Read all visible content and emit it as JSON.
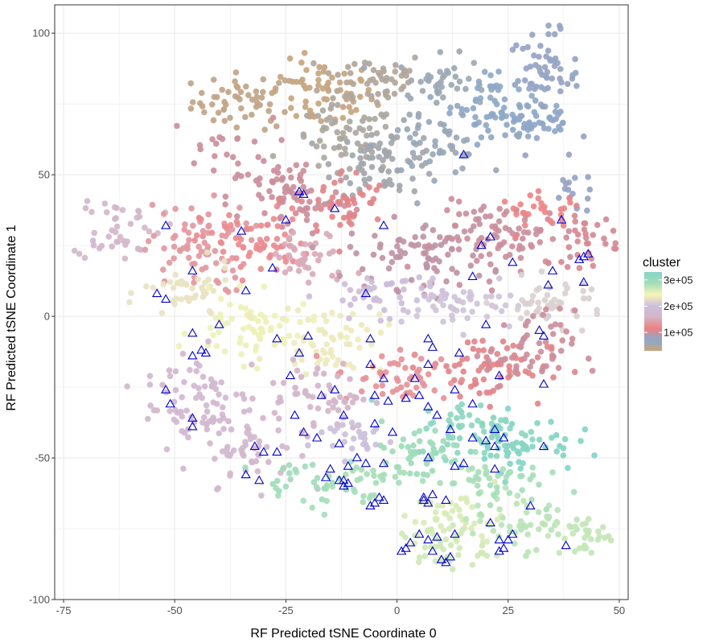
{
  "chart_data": {
    "type": "scatter",
    "title": "",
    "xlabel": "RF Predicted tSNE Coordinate 0",
    "ylabel": "RF Predicted tSNE Coordinate 1",
    "xlim": [
      -77,
      52
    ],
    "ylim": [
      -100,
      110
    ],
    "x_ticks": [
      -75,
      -50,
      -25,
      0,
      25,
      50
    ],
    "y_ticks": [
      -100,
      -50,
      0,
      50,
      100
    ],
    "x_tick_labels": [
      "-75",
      "-50",
      "-25",
      "0",
      "25",
      "50"
    ],
    "y_tick_labels": [
      "-100",
      "-50",
      "0",
      "50",
      "100"
    ],
    "grid": true,
    "background": "#ffffff",
    "grid_color": "#ebebeb",
    "legend": {
      "title": "cluster",
      "placement": "right",
      "min": 30000,
      "max": 330000,
      "break_values": [
        100000,
        200000,
        300000
      ],
      "break_labels": [
        "1e+05",
        "2e+05",
        "3e+05"
      ],
      "palette": [
        "#c7a57f",
        "#8aa9cc",
        "#f08080",
        "#d4b5c8",
        "#ccc0dc",
        "#f8f4b6",
        "#a3ddb9",
        "#86d5c4"
      ]
    },
    "regions": [
      {
        "x": -34,
        "y": 76,
        "sx": 6,
        "sy": 5,
        "n": 55,
        "value": 35000
      },
      {
        "x": -17,
        "y": 78,
        "sx": 6,
        "sy": 6,
        "n": 60,
        "value": 30000
      },
      {
        "x": -5,
        "y": 84,
        "sx": 6,
        "sy": 5,
        "n": 50,
        "value": 45000
      },
      {
        "x": 10,
        "y": 82,
        "sx": 5,
        "sy": 5,
        "n": 45,
        "value": 60000
      },
      {
        "x": 22,
        "y": 76,
        "sx": 5,
        "sy": 6,
        "n": 50,
        "value": 70000
      },
      {
        "x": 33,
        "y": 84,
        "sx": 4,
        "sy": 8,
        "n": 65,
        "value": 78000
      },
      {
        "x": 30,
        "y": 68,
        "sx": 6,
        "sy": 4,
        "n": 40,
        "value": 75000
      },
      {
        "x": 40,
        "y": 44,
        "sx": 3,
        "sy": 4,
        "n": 15,
        "value": 78000
      },
      {
        "x": -12,
        "y": 62,
        "sx": 6,
        "sy": 6,
        "n": 60,
        "value": 48000
      },
      {
        "x": -2,
        "y": 55,
        "sx": 6,
        "sy": 6,
        "n": 70,
        "value": 55000
      },
      {
        "x": 8,
        "y": 60,
        "sx": 6,
        "sy": 5,
        "n": 45,
        "value": 62000
      },
      {
        "x": -40,
        "y": 60,
        "sx": 6,
        "sy": 5,
        "n": 20,
        "value": 100000
      },
      {
        "x": -24,
        "y": 42,
        "sx": 7,
        "sy": 7,
        "n": 75,
        "value": 100000
      },
      {
        "x": -12,
        "y": 40,
        "sx": 5,
        "sy": 6,
        "n": 45,
        "value": 110000
      },
      {
        "x": -63,
        "y": 32,
        "sx": 5,
        "sy": 6,
        "n": 45,
        "value": 165000
      },
      {
        "x": -45,
        "y": 24,
        "sx": 6,
        "sy": 8,
        "n": 75,
        "value": 135000
      },
      {
        "x": -32,
        "y": 26,
        "sx": 6,
        "sy": 6,
        "n": 60,
        "value": 125000
      },
      {
        "x": -20,
        "y": 20,
        "sx": 5,
        "sy": 5,
        "n": 40,
        "value": 150000
      },
      {
        "x": 5,
        "y": 22,
        "sx": 8,
        "sy": 6,
        "n": 80,
        "value": 95000
      },
      {
        "x": 25,
        "y": 28,
        "sx": 8,
        "sy": 6,
        "n": 80,
        "value": 100000
      },
      {
        "x": 42,
        "y": 28,
        "sx": 4,
        "sy": 5,
        "n": 35,
        "value": 105000
      },
      {
        "x": 33,
        "y": 37,
        "sx": 5,
        "sy": 3,
        "n": 25,
        "value": 120000
      },
      {
        "x": -3,
        "y": 8,
        "sx": 7,
        "sy": 4,
        "n": 45,
        "value": 195000
      },
      {
        "x": 15,
        "y": 3,
        "sx": 7,
        "sy": 4,
        "n": 50,
        "value": 205000
      },
      {
        "x": 35,
        "y": 5,
        "sx": 6,
        "sy": 4,
        "n": 45,
        "value": 215000
      },
      {
        "x": -47,
        "y": 8,
        "sx": 5,
        "sy": 5,
        "n": 40,
        "value": 230000
      },
      {
        "x": -32,
        "y": -5,
        "sx": 7,
        "sy": 6,
        "n": 70,
        "value": 250000
      },
      {
        "x": -15,
        "y": -8,
        "sx": 6,
        "sy": 6,
        "n": 55,
        "value": 235000
      },
      {
        "x": 20,
        "y": -18,
        "sx": 7,
        "sy": 6,
        "n": 70,
        "value": 110000
      },
      {
        "x": 30,
        "y": -12,
        "sx": 5,
        "sy": 7,
        "n": 50,
        "value": 100000
      },
      {
        "x": 0,
        "y": -22,
        "sx": 7,
        "sy": 5,
        "n": 50,
        "value": 130000
      },
      {
        "x": -18,
        "y": -28,
        "sx": 6,
        "sy": 6,
        "n": 55,
        "value": 160000
      },
      {
        "x": -45,
        "y": -30,
        "sx": 6,
        "sy": 10,
        "n": 80,
        "value": 175000
      },
      {
        "x": -32,
        "y": -48,
        "sx": 5,
        "sy": 6,
        "n": 45,
        "value": 170000
      },
      {
        "x": 18,
        "y": -40,
        "sx": 7,
        "sy": 5,
        "n": 60,
        "value": 320000
      },
      {
        "x": 28,
        "y": -45,
        "sx": 6,
        "sy": 5,
        "n": 50,
        "value": 330000
      },
      {
        "x": 5,
        "y": -48,
        "sx": 6,
        "sy": 5,
        "n": 45,
        "value": 295000
      },
      {
        "x": -10,
        "y": -58,
        "sx": 6,
        "sy": 4,
        "n": 40,
        "value": 285000
      },
      {
        "x": -22,
        "y": -58,
        "sx": 5,
        "sy": 3,
        "n": 20,
        "value": 290000
      },
      {
        "x": 14,
        "y": -72,
        "sx": 5,
        "sy": 5,
        "n": 45,
        "value": 260000
      },
      {
        "x": 10,
        "y": -82,
        "sx": 5,
        "sy": 4,
        "n": 40,
        "value": 265000
      },
      {
        "x": 28,
        "y": -72,
        "sx": 6,
        "sy": 5,
        "n": 50,
        "value": 275000
      },
      {
        "x": 42,
        "y": -78,
        "sx": 4,
        "sy": 4,
        "n": 30,
        "value": 270000
      },
      {
        "x": 20,
        "y": -58,
        "sx": 6,
        "sy": 4,
        "n": 40,
        "value": 285000
      },
      {
        "x": -10,
        "y": -42,
        "sx": 5,
        "sy": 4,
        "n": 30,
        "value": 200000
      }
    ],
    "triangles": {
      "marker": "open-triangle",
      "color": "#0000cc",
      "points": [
        [
          15,
          57
        ],
        [
          -22,
          44
        ],
        [
          -21,
          43
        ],
        [
          -14,
          38
        ],
        [
          -25,
          34
        ],
        [
          -52,
          32
        ],
        [
          -35,
          30
        ],
        [
          -3,
          32
        ],
        [
          37,
          34
        ],
        [
          21,
          28
        ],
        [
          19,
          25
        ],
        [
          42,
          21
        ],
        [
          43,
          22
        ],
        [
          41,
          20
        ],
        [
          26,
          19
        ],
        [
          17,
          14
        ],
        [
          35,
          16
        ],
        [
          34,
          11
        ],
        [
          42,
          12
        ],
        [
          -46,
          16
        ],
        [
          -28,
          17
        ],
        [
          -54,
          8
        ],
        [
          -52,
          6
        ],
        [
          -34,
          9
        ],
        [
          -7,
          8
        ],
        [
          -40,
          -3
        ],
        [
          -46,
          -6
        ],
        [
          -20,
          -7
        ],
        [
          -27,
          -8
        ],
        [
          -44,
          -12
        ],
        [
          -43,
          -13
        ],
        [
          -46,
          -14
        ],
        [
          -22,
          -13
        ],
        [
          -6,
          -8
        ],
        [
          7,
          -8
        ],
        [
          20,
          -3
        ],
        [
          32,
          -5
        ],
        [
          33,
          -7
        ],
        [
          -6,
          -17
        ],
        [
          7,
          -17
        ],
        [
          14,
          -13
        ],
        [
          8,
          -11
        ],
        [
          -24,
          -21
        ],
        [
          -3,
          -22
        ],
        [
          4,
          -22
        ],
        [
          23,
          -21
        ],
        [
          33,
          -24
        ],
        [
          -14,
          -26
        ],
        [
          -52,
          -26
        ],
        [
          -12,
          -35
        ],
        [
          -23,
          -35
        ],
        [
          -5,
          -28
        ],
        [
          -51,
          -31
        ],
        [
          -17,
          -28
        ],
        [
          2,
          -29
        ],
        [
          5,
          -28
        ],
        [
          13,
          -26
        ],
        [
          -2,
          -30
        ],
        [
          -46,
          -36
        ],
        [
          7,
          -32
        ],
        [
          9,
          -35
        ],
        [
          17,
          -31
        ],
        [
          -5,
          -38
        ],
        [
          -1,
          -41
        ],
        [
          -21,
          -41
        ],
        [
          -18,
          -43
        ],
        [
          -46,
          -39
        ],
        [
          -32,
          -46
        ],
        [
          -13,
          -45
        ],
        [
          -30,
          -48
        ],
        [
          -27,
          -48
        ],
        [
          12,
          -40
        ],
        [
          22,
          -40
        ],
        [
          17,
          -43
        ],
        [
          24,
          -43
        ],
        [
          20,
          -44
        ],
        [
          22,
          -46
        ],
        [
          33,
          -46
        ],
        [
          -9,
          -50
        ],
        [
          -7,
          -52
        ],
        [
          -11,
          -53
        ],
        [
          -3,
          -52
        ],
        [
          7,
          -50
        ],
        [
          15,
          -52
        ],
        [
          13,
          -53
        ],
        [
          22,
          -54
        ],
        [
          -34,
          -56
        ],
        [
          -15,
          -54
        ],
        [
          -16,
          -57
        ],
        [
          -31,
          -58
        ],
        [
          -13,
          -58
        ],
        [
          -12,
          -58
        ],
        [
          -11,
          -59
        ],
        [
          -12,
          -60
        ],
        [
          -5,
          -66
        ],
        [
          -4,
          -64
        ],
        [
          -3,
          -65
        ],
        [
          -6,
          -67
        ],
        [
          6,
          -64
        ],
        [
          7,
          -66
        ],
        [
          6,
          -65
        ],
        [
          8,
          -63
        ],
        [
          11,
          -65
        ],
        [
          30,
          -67
        ],
        [
          21,
          -73
        ],
        [
          5,
          -77
        ],
        [
          7,
          -79
        ],
        [
          8,
          -83
        ],
        [
          9,
          -78
        ],
        [
          10,
          -86
        ],
        [
          11,
          -87
        ],
        [
          12,
          -85
        ],
        [
          13,
          -77
        ],
        [
          23,
          -79
        ],
        [
          23,
          -83
        ],
        [
          24,
          -82
        ],
        [
          25,
          -79
        ],
        [
          26,
          -77
        ],
        [
          38,
          -81
        ],
        [
          3,
          -80
        ],
        [
          2,
          -82
        ],
        [
          1,
          -83
        ]
      ]
    }
  }
}
